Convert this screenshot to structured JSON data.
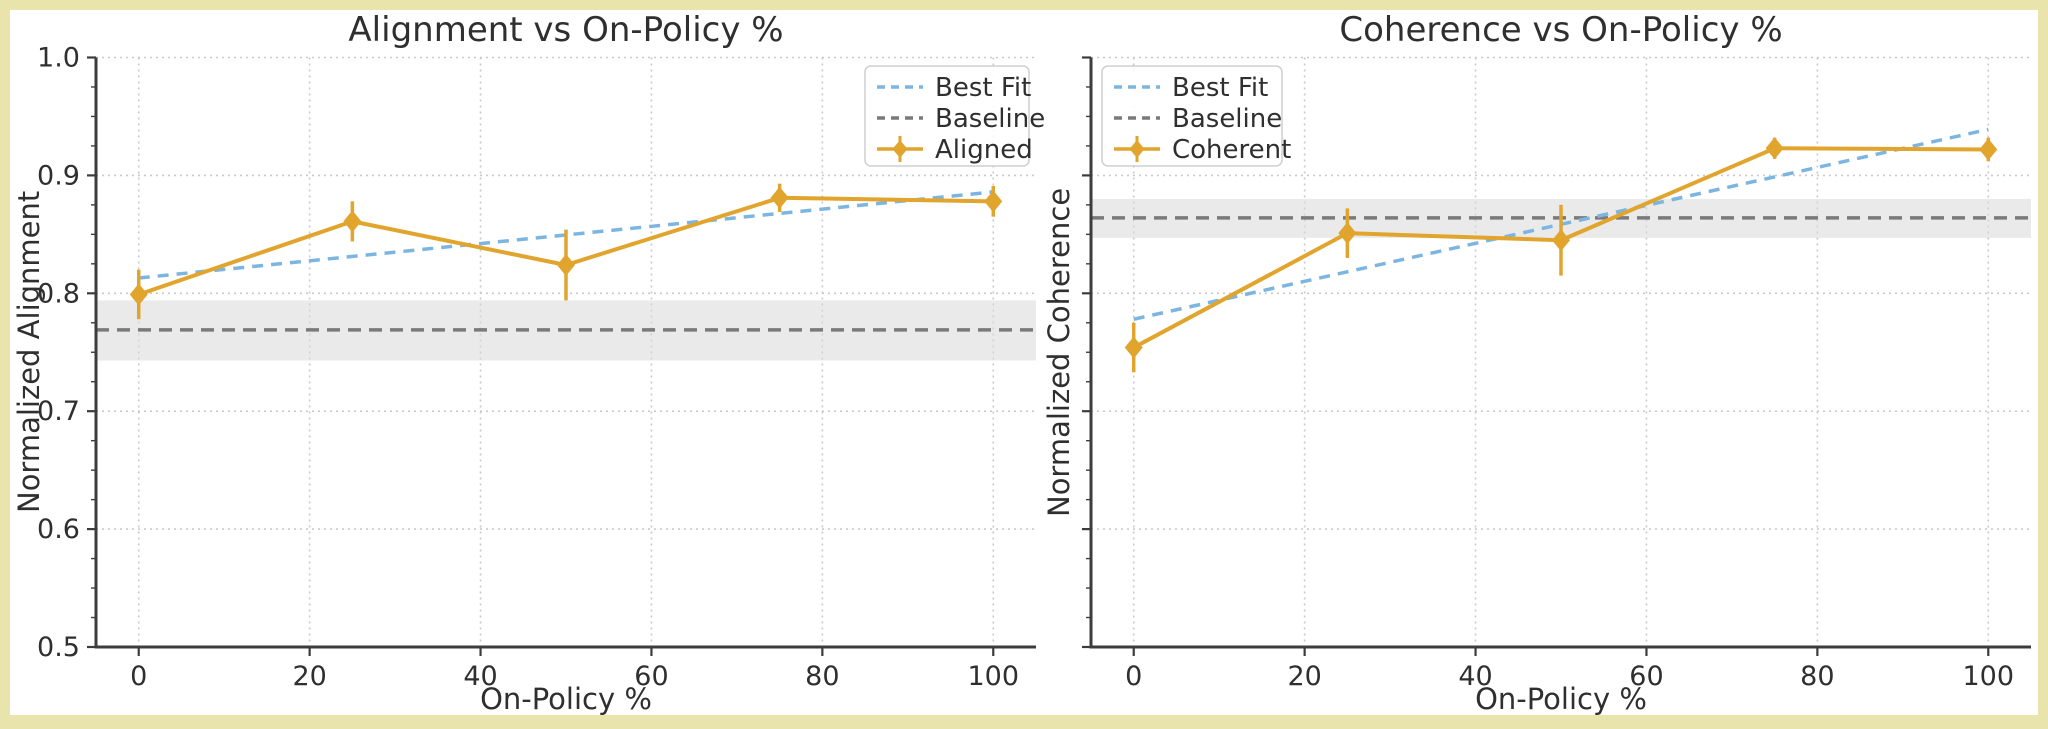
{
  "figure": {
    "frame_color": "#E8E4AB",
    "background_color": "#FFFFFF",
    "grid_color": "#C9C9C9",
    "spine_color": "#3C3C3C",
    "text_color": "#2F2F2F"
  },
  "chart_data": [
    {
      "type": "line",
      "title": "Alignment vs On-Policy %",
      "xlabel": "On-Policy %",
      "ylabel": "Normalized Alignment",
      "xlim": [
        -5,
        105
      ],
      "ylim": [
        0.5,
        1.0
      ],
      "xticks": [
        0,
        20,
        40,
        60,
        80,
        100
      ],
      "xtick_labels": [
        "0",
        "20",
        "40",
        "60",
        "80",
        "100"
      ],
      "yticks": [
        0.5,
        0.6,
        0.7,
        0.8,
        0.9,
        1.0
      ],
      "ytick_labels": [
        "0.5",
        "0.6",
        "0.7",
        "0.8",
        "0.9",
        "1.0"
      ],
      "show_ytick_labels": true,
      "grid": true,
      "series": [
        {
          "name": "Aligned",
          "color": "#E1A42D",
          "marker": "diamond",
          "x": [
            0,
            25,
            50,
            75,
            100
          ],
          "y": [
            0.799,
            0.861,
            0.824,
            0.881,
            0.878
          ],
          "yerr": [
            0.021,
            0.017,
            0.03,
            0.012,
            0.013
          ]
        }
      ],
      "best_fit": {
        "label": "Best Fit",
        "color": "#7CB5E0",
        "x": [
          0,
          100
        ],
        "y": [
          0.813,
          0.886
        ]
      },
      "baseline": {
        "label": "Baseline",
        "color": "#7A7A7A",
        "y": 0.769,
        "band": [
          0.743,
          0.794
        ],
        "band_color": "#D8D8D8"
      },
      "legend": {
        "position": "upper-right",
        "entries": [
          "Best Fit",
          "Baseline",
          "Aligned"
        ]
      }
    },
    {
      "type": "line",
      "title": "Coherence vs On-Policy %",
      "xlabel": "On-Policy %",
      "ylabel": "Normalized Coherence",
      "xlim": [
        -5,
        105
      ],
      "ylim": [
        0.5,
        1.0
      ],
      "xticks": [
        0,
        20,
        40,
        60,
        80,
        100
      ],
      "xtick_labels": [
        "0",
        "20",
        "40",
        "60",
        "80",
        "100"
      ],
      "yticks": [
        0.5,
        0.6,
        0.7,
        0.8,
        0.9,
        1.0
      ],
      "ytick_labels": [
        "0.5",
        "0.6",
        "0.7",
        "0.8",
        "0.9",
        "1.0"
      ],
      "show_ytick_labels": false,
      "grid": true,
      "series": [
        {
          "name": "Coherent",
          "color": "#E1A42D",
          "marker": "diamond",
          "x": [
            0,
            25,
            50,
            75,
            100
          ],
          "y": [
            0.754,
            0.851,
            0.845,
            0.923,
            0.922
          ],
          "yerr": [
            0.021,
            0.021,
            0.03,
            0.009,
            0.01
          ]
        }
      ],
      "best_fit": {
        "label": "Best Fit",
        "color": "#7CB5E0",
        "x": [
          0,
          100
        ],
        "y": [
          0.778,
          0.939
        ]
      },
      "baseline": {
        "label": "Baseline",
        "color": "#7A7A7A",
        "y": 0.864,
        "band": [
          0.847,
          0.88
        ],
        "band_color": "#D8D8D8"
      },
      "legend": {
        "position": "upper-left",
        "entries": [
          "Best Fit",
          "Baseline",
          "Coherent"
        ]
      }
    }
  ]
}
